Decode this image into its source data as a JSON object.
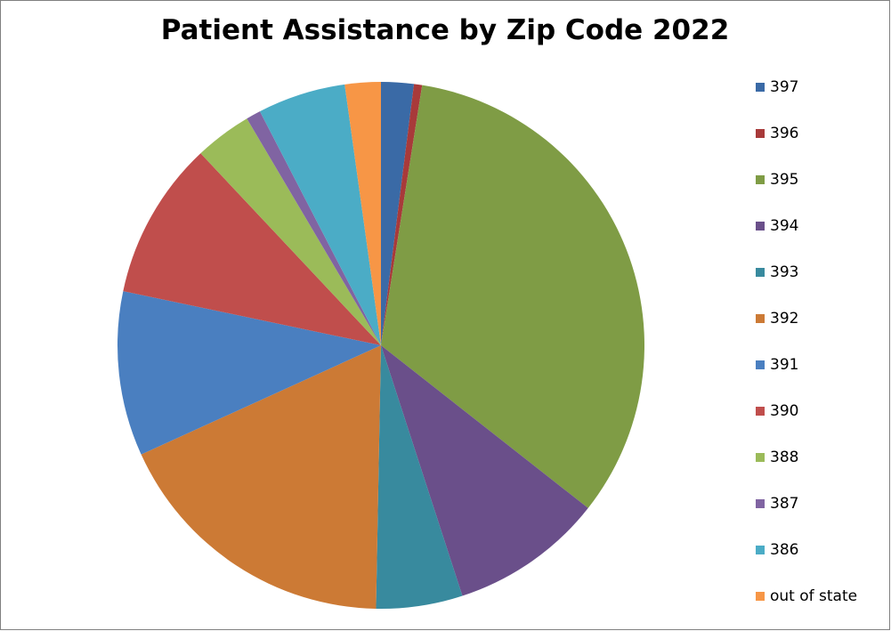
{
  "chart_data": {
    "type": "pie",
    "title": "Patient Assistance by Zip Code 2022",
    "categories": [
      "397",
      "396",
      "395",
      "394",
      "393",
      "392",
      "391",
      "390",
      "388",
      "387",
      "386",
      "out of state"
    ],
    "values": [
      2.0,
      0.5,
      33.1,
      9.4,
      5.3,
      17.9,
      10.1,
      9.7,
      3.5,
      0.9,
      5.4,
      2.2
    ],
    "colors": [
      "#3a6aa6",
      "#a83a3a",
      "#7f9c45",
      "#6a4f8a",
      "#388a9e",
      "#cc7a35",
      "#4a7fc0",
      "#c04e4c",
      "#9bbb59",
      "#8064a2",
      "#4bacc6",
      "#f79646"
    ],
    "legend": "right"
  }
}
